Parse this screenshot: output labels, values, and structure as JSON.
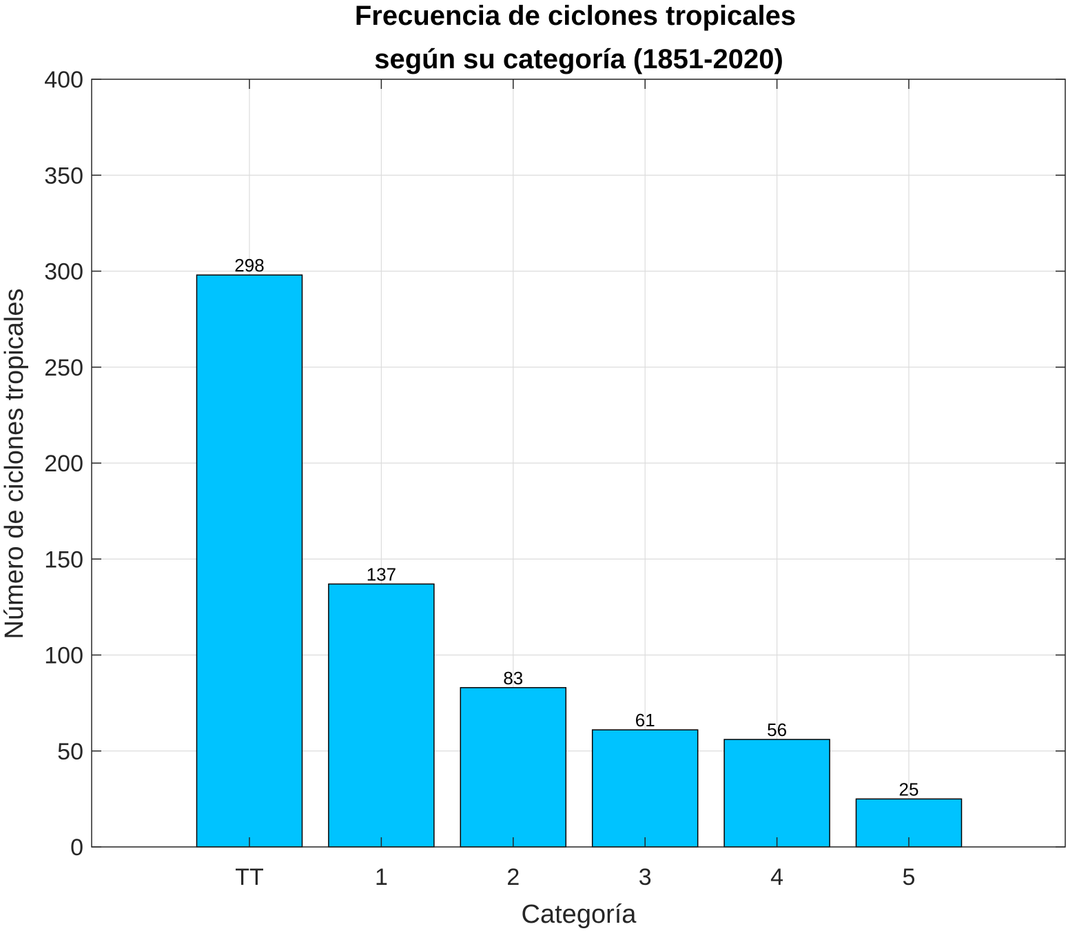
{
  "chart_data": {
    "type": "bar",
    "title_lines": [
      "Frecuencia de ciclones tropicales",
      "según su categoría (1851-2020)"
    ],
    "xlabel": "Categoría",
    "ylabel": "Número de ciclones tropicales",
    "categories": [
      "TT",
      "1",
      "2",
      "3",
      "4",
      "5"
    ],
    "values": [
      298,
      137,
      83,
      61,
      56,
      25
    ],
    "data_labels": [
      "298",
      "137",
      "83",
      "61",
      "56",
      "25"
    ],
    "ylim": [
      0,
      400
    ],
    "yticks": [
      "0",
      "50",
      "100",
      "150",
      "200",
      "250",
      "300",
      "350",
      "400"
    ],
    "grid": true,
    "bar_color": "#00C3FF",
    "bar_edge_color": "#000000"
  }
}
